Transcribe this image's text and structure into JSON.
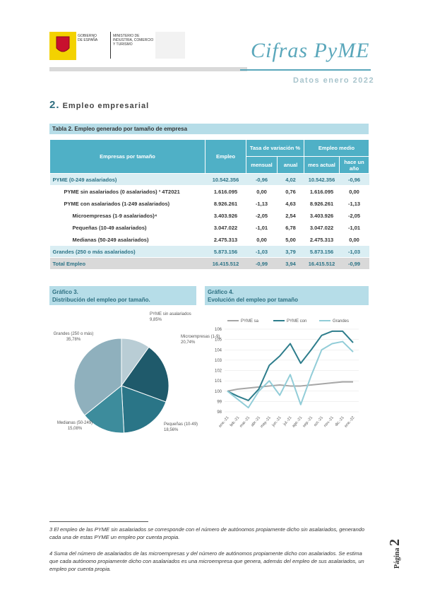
{
  "header": {
    "gov_line1": "GOBIERNO",
    "gov_line2": "DE ESPAÑA",
    "ministry": "MINISTERIO DE INDUSTRIA, COMERCIO Y TURISMO",
    "brand": "Cifras PyME",
    "date": "Datos enero 2022"
  },
  "section": {
    "number": "2.",
    "title": "Empleo empresarial"
  },
  "table": {
    "caption": "Tabla 2. Empleo generado por tamaño de empresa",
    "header": [
      [
        "Empresas por tamaño",
        "Empleo",
        "Tasa de variación %",
        "Empleo medio"
      ],
      [
        "mensual",
        "anual",
        "mes actual",
        "hace un año"
      ]
    ],
    "rows": [
      [
        "PYME (0-249 asalariados)",
        "10.542.356",
        "-0,96",
        "4,02",
        "10.542.356",
        "-0,96"
      ],
      [
        "PYME sin asalariados (0 asalariados) ³ 4T2021",
        "1.616.095",
        "0,00",
        "0,76",
        "1.616.095",
        "0,00"
      ],
      [
        "PYME con asalariados (1-249 asalariados)",
        "8.926.261",
        "-1,13",
        "4,63",
        "8.926.261",
        "-1,13"
      ],
      [
        "Microempresas (1-9 asalariados)⁴",
        "3.403.926",
        "-2,05",
        "2,54",
        "3.403.926",
        "-2,05"
      ],
      [
        "Pequeñas (10-49 asalariados)",
        "3.047.022",
        "-1,01",
        "6,78",
        "3.047.022",
        "-1,01"
      ],
      [
        "Medianas (50-249 asalariados)",
        "2.475.313",
        "0,00",
        "5,00",
        "2.475.313",
        "0,00"
      ],
      [
        "Grandes (250 o más asalariados)",
        "5.873.156",
        "-1,03",
        "3,79",
        "5.873.156",
        "-1,03"
      ],
      [
        "Total Empleo",
        "16.415.512",
        "-0,99",
        "3,94",
        "16.415.512",
        "-0,99"
      ]
    ]
  },
  "chart_data": [
    {
      "type": "pie",
      "title": "Gráfico 3.",
      "subtitle": "Distribución del empleo por tamaño.",
      "categories": [
        "PYME sin asalariados",
        "Microempresas (1-9)",
        "Pequeñas (10-49)",
        "Medianas (50-249)",
        "Grandes (250 o más)"
      ],
      "values": [
        9.85,
        20.74,
        18.56,
        15.08,
        35.78
      ],
      "value_labels": [
        "9,85%",
        "20,74%",
        "18,56%",
        "15,08%",
        "35,78%"
      ],
      "colors": [
        "#b9cdd5",
        "#1f5a6b",
        "#2a7587",
        "#3d8c9c",
        "#8fb0bd"
      ]
    },
    {
      "type": "line",
      "title": "Gráfico 4.",
      "subtitle": "Evolución del empleo por tamaño",
      "categories": [
        "ene.-21",
        "feb.-21",
        "mar.-21",
        "abr.-21",
        "may.-21",
        "jun.-21",
        "jul.-21",
        "ago.-21",
        "sep.-21",
        "oct.-21",
        "nov.-21",
        "dic.-21",
        "ene.-22"
      ],
      "series": [
        {
          "name": "PYME sa",
          "color": "#a6a6a6",
          "values": [
            100,
            100.2,
            100.3,
            100.4,
            100.5,
            100.6,
            100.5,
            100.5,
            100.6,
            100.7,
            100.8,
            100.9,
            100.9
          ]
        },
        {
          "name": "PYME con",
          "color": "#2e7d8c",
          "values": [
            100,
            99.5,
            99.1,
            100.2,
            102.5,
            103.4,
            104.6,
            102.7,
            104,
            105.4,
            105.8,
            105.8,
            104.7
          ]
        },
        {
          "name": "Grandes",
          "color": "#92cdd8",
          "values": [
            100,
            99.2,
            98.4,
            100,
            101,
            99.6,
            101.6,
            98.7,
            101.5,
            104,
            104.6,
            104.8,
            103.8
          ]
        }
      ],
      "ylim": [
        98,
        106
      ],
      "yticks": [
        98,
        99,
        100,
        101,
        102,
        103,
        104,
        105,
        106
      ],
      "grid": true
    }
  ],
  "footnotes": [
    "3  El empleo de las PYME sin asalariados se corresponde con el número de autónomos propiamente dicho sin asalariados, generando cada una de estas PYME un empleo por cuenta propia.",
    "4 Suma del número de asalariados de las microempresas y del número de autónomos propiamente dicho con asalariados. Se estima que cada autónomo propiamente dicho con asalariados es una microempresa que genera, además del empleo de sus asalariados, un empleo por cuenta propia."
  ],
  "footer": {
    "page_label": "Página",
    "page_number": 2
  }
}
